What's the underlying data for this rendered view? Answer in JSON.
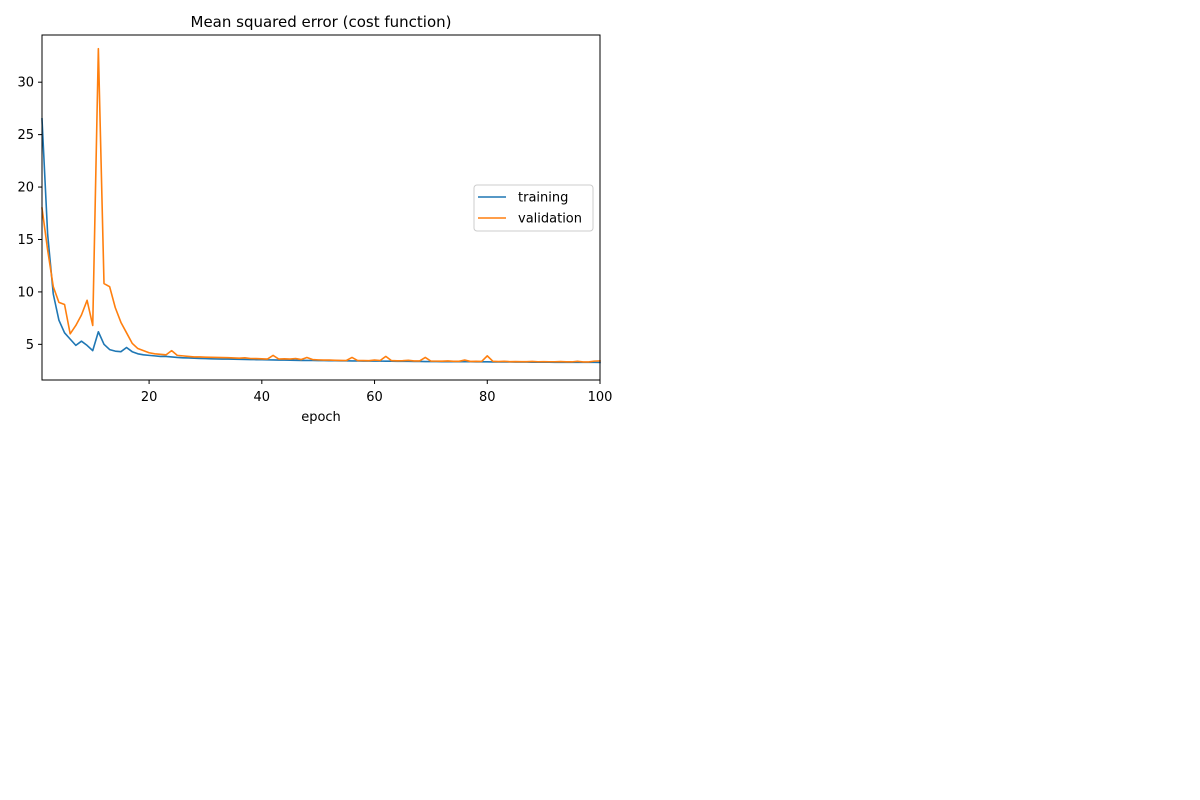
{
  "chart_data": {
    "type": "line",
    "title": "Mean squared error (cost function)",
    "xlabel": "epoch",
    "ylabel": "",
    "xlim": [
      1,
      100
    ],
    "ylim": [
      1.6,
      34.5
    ],
    "xticks": [
      20,
      40,
      60,
      80,
      100
    ],
    "yticks": [
      5,
      10,
      15,
      20,
      25,
      30
    ],
    "grid": false,
    "legend_position": "center-right",
    "series": [
      {
        "name": "training",
        "color": "#1f77b4",
        "x": [
          1,
          2,
          3,
          4,
          5,
          6,
          7,
          8,
          9,
          10,
          11,
          12,
          13,
          14,
          15,
          16,
          17,
          18,
          19,
          20,
          21,
          22,
          23,
          24,
          25,
          26,
          27,
          28,
          29,
          30,
          31,
          32,
          33,
          34,
          35,
          36,
          37,
          38,
          39,
          40,
          41,
          42,
          43,
          44,
          45,
          46,
          47,
          48,
          49,
          50,
          51,
          52,
          53,
          54,
          55,
          56,
          57,
          58,
          59,
          60,
          61,
          62,
          63,
          64,
          65,
          66,
          67,
          68,
          69,
          70,
          71,
          72,
          73,
          74,
          75,
          76,
          77,
          78,
          79,
          80,
          81,
          82,
          83,
          84,
          85,
          86,
          87,
          88,
          89,
          90,
          91,
          92,
          93,
          94,
          95,
          96,
          97,
          98,
          99,
          100
        ],
        "values": [
          26.5,
          15.5,
          9.8,
          7.3,
          6.1,
          5.5,
          4.9,
          5.3,
          4.9,
          4.4,
          6.2,
          5.0,
          4.5,
          4.35,
          4.3,
          4.7,
          4.3,
          4.1,
          4.0,
          3.95,
          3.9,
          3.85,
          3.85,
          3.8,
          3.75,
          3.72,
          3.7,
          3.68,
          3.66,
          3.64,
          3.62,
          3.61,
          3.6,
          3.59,
          3.58,
          3.57,
          3.56,
          3.55,
          3.54,
          3.53,
          3.52,
          3.51,
          3.5,
          3.5,
          3.49,
          3.48,
          3.47,
          3.47,
          3.46,
          3.45,
          3.45,
          3.44,
          3.44,
          3.43,
          3.43,
          3.42,
          3.42,
          3.41,
          3.41,
          3.4,
          3.4,
          3.39,
          3.39,
          3.38,
          3.38,
          3.38,
          3.37,
          3.37,
          3.36,
          3.36,
          3.36,
          3.35,
          3.35,
          3.35,
          3.34,
          3.34,
          3.34,
          3.33,
          3.33,
          3.33,
          3.32,
          3.32,
          3.32,
          3.32,
          3.31,
          3.31,
          3.31,
          3.3,
          3.3,
          3.3,
          3.3,
          3.29,
          3.29,
          3.29,
          3.29,
          3.28,
          3.28,
          3.28,
          3.28,
          3.27
        ]
      },
      {
        "name": "validation",
        "color": "#ff7f0e",
        "x": [
          1,
          2,
          3,
          4,
          5,
          6,
          7,
          8,
          9,
          10,
          11,
          12,
          13,
          14,
          15,
          16,
          17,
          18,
          19,
          20,
          21,
          22,
          23,
          24,
          25,
          26,
          27,
          28,
          29,
          30,
          31,
          32,
          33,
          34,
          35,
          36,
          37,
          38,
          39,
          40,
          41,
          42,
          43,
          44,
          45,
          46,
          47,
          48,
          49,
          50,
          51,
          52,
          53,
          54,
          55,
          56,
          57,
          58,
          59,
          60,
          61,
          62,
          63,
          64,
          65,
          66,
          67,
          68,
          69,
          70,
          71,
          72,
          73,
          74,
          75,
          76,
          77,
          78,
          79,
          80,
          81,
          82,
          83,
          84,
          85,
          86,
          87,
          88,
          89,
          90,
          91,
          92,
          93,
          94,
          95,
          96,
          97,
          98,
          99,
          100
        ],
        "values": [
          18.0,
          14.0,
          10.5,
          9.0,
          8.8,
          6.0,
          6.8,
          7.8,
          9.2,
          6.8,
          33.2,
          10.8,
          10.5,
          8.5,
          7.1,
          6.1,
          5.1,
          4.6,
          4.4,
          4.2,
          4.1,
          4.05,
          4.0,
          4.4,
          3.95,
          3.9,
          3.85,
          3.8,
          3.8,
          3.78,
          3.76,
          3.75,
          3.74,
          3.73,
          3.7,
          3.68,
          3.72,
          3.65,
          3.64,
          3.62,
          3.6,
          3.95,
          3.6,
          3.62,
          3.6,
          3.65,
          3.55,
          3.75,
          3.55,
          3.52,
          3.5,
          3.5,
          3.48,
          3.47,
          3.46,
          3.75,
          3.45,
          3.45,
          3.44,
          3.5,
          3.46,
          3.85,
          3.45,
          3.43,
          3.44,
          3.48,
          3.42,
          3.42,
          3.75,
          3.4,
          3.4,
          3.39,
          3.42,
          3.38,
          3.38,
          3.5,
          3.37,
          3.38,
          3.37,
          3.9,
          3.38,
          3.36,
          3.38,
          3.35,
          3.36,
          3.35,
          3.35,
          3.37,
          3.34,
          3.35,
          3.34,
          3.34,
          3.36,
          3.33,
          3.33,
          3.38,
          3.32,
          3.32,
          3.4,
          3.42
        ]
      }
    ]
  }
}
